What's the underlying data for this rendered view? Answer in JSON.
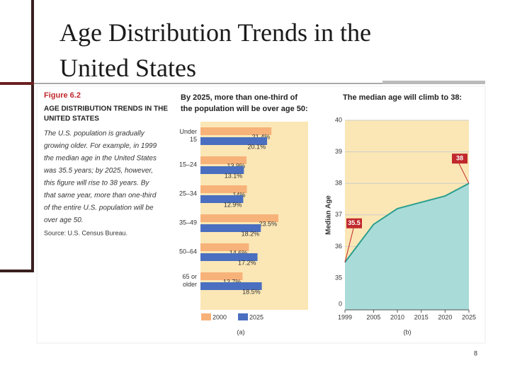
{
  "slide_title": [
    "Age Distribution Trends in the",
    "United States"
  ],
  "figure": {
    "label": "Figure 6.2",
    "heading": [
      "AGE DISTRIBUTION TRENDS IN THE",
      "UNITED STATES"
    ],
    "body": [
      "The U.S. population is gradually",
      "growing older. For example, in 1999",
      "the median age in the United States",
      "was 35.5 years; by 2025, however,",
      "this figure will rise to 38 years. By",
      "that same year, more than one-third",
      "of the entire U.S. population will be",
      "over age 50."
    ],
    "source": "Source: U.S. Census Bureau."
  },
  "page_number": "8",
  "chart_data": [
    {
      "type": "hbar",
      "title": [
        "By 2025, more than one-third of",
        "the population will be over age 50:"
      ],
      "categories": [
        [
          "Under",
          "15"
        ],
        [
          "15–24"
        ],
        [
          "25–34"
        ],
        [
          "35–49"
        ],
        [
          "50–64"
        ],
        [
          "65 or",
          "older"
        ]
      ],
      "series": [
        {
          "name": "2000",
          "color": "#f7b27a",
          "values": [
            21.4,
            13.9,
            14,
            23.5,
            14.6,
            12.7
          ],
          "value_labels": [
            "21.4%",
            "13.9%",
            "14%",
            "23.5%",
            "14.6%",
            "12.7%"
          ]
        },
        {
          "name": "2025",
          "color": "#4a6fc0",
          "values": [
            20.1,
            13.1,
            12.9,
            18.2,
            17.2,
            18.5
          ],
          "value_labels": [
            "20.1%",
            "13.1%",
            "12.9%",
            "18.2%",
            "17.2%",
            "18.5%"
          ]
        }
      ],
      "caption": "(a)"
    },
    {
      "type": "area",
      "title": "The median age will climb to 38:",
      "ylabel": "Median Age",
      "x": [
        1999,
        2005,
        2010,
        2015,
        2020,
        2025
      ],
      "xlim": [
        1999,
        2025
      ],
      "xticks": [
        1999,
        2005,
        2010,
        2015,
        2020,
        2025
      ],
      "values": [
        35.5,
        36.7,
        37.2,
        37.4,
        37.6,
        38
      ],
      "value_labels": [
        "35.5",
        null,
        null,
        null,
        null,
        "38"
      ],
      "ylim": [
        35,
        40
      ],
      "yticks": [
        35,
        36,
        37,
        38,
        39,
        40
      ],
      "ybreak_label": 0,
      "color": "#2a9d8f",
      "fill": "#a9dcd8",
      "grid": true,
      "caption": "(b)"
    }
  ]
}
